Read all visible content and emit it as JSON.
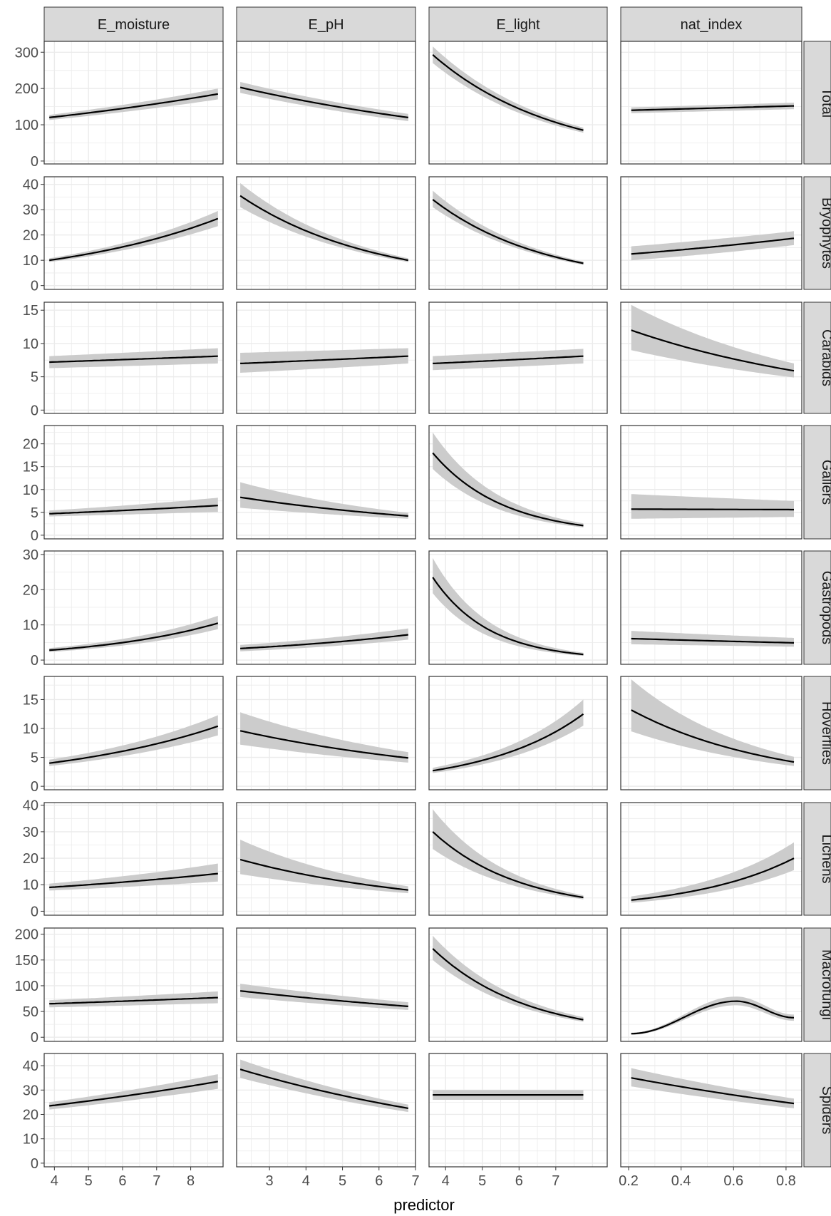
{
  "chart_data": {
    "type": "line",
    "xlabel": "predictor",
    "ylabel": "",
    "columns": [
      {
        "name": "E_moisture",
        "xlim": [
          3.7,
          8.95
        ],
        "ticks": [
          4,
          5,
          6,
          7,
          8
        ]
      },
      {
        "name": "E_pH",
        "xlim": [
          2.1,
          7.0
        ],
        "ticks": [
          3,
          4,
          5,
          6,
          7
        ]
      },
      {
        "name": "E_light",
        "xlim": [
          3.55,
          8.4
        ],
        "ticks": [
          4,
          5,
          6,
          7
        ]
      },
      {
        "name": "nat_index",
        "xlim": [
          0.17,
          0.86
        ],
        "ticks": [
          0.2,
          0.4,
          0.6,
          0.8
        ],
        "tick_labels": [
          "0.2",
          "0.4",
          "0.6",
          "0.8"
        ]
      }
    ],
    "rows": [
      {
        "name": "Total",
        "ylim": [
          -8,
          330
        ],
        "yticks": [
          0,
          100,
          200,
          300
        ],
        "panels": [
          {
            "x": [
              3.85,
              8.8
            ],
            "y": [
              120,
              185
            ],
            "lo": [
              113,
              170
            ],
            "hi": [
              127,
              200
            ]
          },
          {
            "x": [
              2.2,
              6.8
            ],
            "y": [
              203,
              120
            ],
            "lo": [
              188,
              110
            ],
            "hi": [
              218,
              130
            ]
          },
          {
            "x": [
              3.65,
              7.75
            ],
            "y": [
              293,
              85
            ],
            "lo": [
              270,
              78
            ],
            "hi": [
              316,
              92
            ]
          },
          {
            "x": [
              0.21,
              0.83
            ],
            "y": [
              140,
              152
            ],
            "lo": [
              132,
              143
            ],
            "hi": [
              148,
              161
            ]
          }
        ]
      },
      {
        "name": "Bryophytes",
        "ylim": [
          -1.5,
          43
        ],
        "yticks": [
          0,
          10,
          20,
          30,
          40
        ],
        "panels": [
          {
            "x": [
              3.85,
              8.8
            ],
            "y": [
              10,
              26.5
            ],
            "lo": [
              9.3,
              23.5
            ],
            "hi": [
              10.8,
              29.5
            ]
          },
          {
            "x": [
              2.2,
              6.8
            ],
            "y": [
              35.5,
              10
            ],
            "lo": [
              31,
              9.3
            ],
            "hi": [
              40.5,
              10.8
            ]
          },
          {
            "x": [
              3.65,
              7.75
            ],
            "y": [
              34,
              8.8
            ],
            "lo": [
              31,
              8.2
            ],
            "hi": [
              37.5,
              9.5
            ]
          },
          {
            "x": [
              0.21,
              0.83
            ],
            "y": [
              12.5,
              18.7
            ],
            "lo": [
              10,
              16
            ],
            "hi": [
              15.5,
              21.5
            ]
          }
        ]
      },
      {
        "name": "Carabids",
        "ylim": [
          -0.5,
          16.2
        ],
        "yticks": [
          0,
          5,
          10,
          15
        ],
        "panels": [
          {
            "x": [
              3.85,
              8.8
            ],
            "y": [
              7.2,
              8.1
            ],
            "lo": [
              6.3,
              7.0
            ],
            "hi": [
              8.1,
              9.3
            ]
          },
          {
            "x": [
              2.2,
              6.8
            ],
            "y": [
              7.0,
              8.1
            ],
            "lo": [
              5.6,
              7.0
            ],
            "hi": [
              8.6,
              9.3
            ]
          },
          {
            "x": [
              3.65,
              7.75
            ],
            "y": [
              7.0,
              8.1
            ],
            "lo": [
              6.0,
              7.0
            ],
            "hi": [
              8.1,
              9.2
            ]
          },
          {
            "x": [
              0.21,
              0.83
            ],
            "y": [
              12.0,
              5.9
            ],
            "lo": [
              9.0,
              4.9
            ],
            "hi": [
              15.8,
              7.0
            ]
          }
        ]
      },
      {
        "name": "Gallers",
        "ylim": [
          -0.8,
          24
        ],
        "yticks": [
          0,
          5,
          10,
          15,
          20
        ],
        "panels": [
          {
            "x": [
              3.85,
              8.8
            ],
            "y": [
              4.7,
              6.5
            ],
            "lo": [
              4.1,
              5.1
            ],
            "hi": [
              5.4,
              8.2
            ]
          },
          {
            "x": [
              2.2,
              6.8
            ],
            "y": [
              8.3,
              4.2
            ],
            "lo": [
              6.0,
              3.6
            ],
            "hi": [
              11.6,
              4.9
            ]
          },
          {
            "x": [
              3.65,
              7.75
            ],
            "y": [
              18,
              2.1
            ],
            "lo": [
              14.5,
              1.7
            ],
            "hi": [
              22.5,
              2.6
            ]
          },
          {
            "x": [
              0.21,
              0.83
            ],
            "y": [
              5.7,
              5.6
            ],
            "lo": [
              3.6,
              4.0
            ],
            "hi": [
              9.0,
              7.5
            ]
          }
        ]
      },
      {
        "name": "Gastropods",
        "ylim": [
          -1.2,
          31
        ],
        "yticks": [
          0,
          10,
          20,
          30
        ],
        "panels": [
          {
            "x": [
              3.85,
              8.8
            ],
            "y": [
              2.8,
              10.5
            ],
            "lo": [
              2.3,
              8.8
            ],
            "hi": [
              3.4,
              12.6
            ]
          },
          {
            "x": [
              2.2,
              6.8
            ],
            "y": [
              3.3,
              7.2
            ],
            "lo": [
              2.5,
              5.8
            ],
            "hi": [
              4.3,
              9.0
            ]
          },
          {
            "x": [
              3.65,
              7.75
            ],
            "y": [
              23.5,
              1.6
            ],
            "lo": [
              19,
              1.2
            ],
            "hi": [
              29,
              2.1
            ]
          },
          {
            "x": [
              0.21,
              0.83
            ],
            "y": [
              6.1,
              4.9
            ],
            "lo": [
              4.5,
              3.8
            ],
            "hi": [
              8.3,
              6.3
            ]
          }
        ]
      },
      {
        "name": "Hoverflies",
        "ylim": [
          -0.6,
          19
        ],
        "yticks": [
          0,
          5,
          10,
          15
        ],
        "panels": [
          {
            "x": [
              3.85,
              8.8
            ],
            "y": [
              4.0,
              10.4
            ],
            "lo": [
              3.5,
              8.8
            ],
            "hi": [
              4.6,
              12.3
            ]
          },
          {
            "x": [
              2.2,
              6.8
            ],
            "y": [
              9.6,
              4.9
            ],
            "lo": [
              7.2,
              4.1
            ],
            "hi": [
              12.8,
              5.9
            ]
          },
          {
            "x": [
              3.65,
              7.75
            ],
            "y": [
              2.7,
              12.5
            ],
            "lo": [
              2.3,
              10.5
            ],
            "hi": [
              3.2,
              15.0
            ]
          },
          {
            "x": [
              0.21,
              0.83
            ],
            "y": [
              13.2,
              4.2
            ],
            "lo": [
              9.5,
              3.5
            ],
            "hi": [
              18.5,
              5.1
            ]
          }
        ]
      },
      {
        "name": "Lichens",
        "ylim": [
          -1.5,
          41
        ],
        "yticks": [
          0,
          10,
          20,
          30,
          40
        ],
        "panels": [
          {
            "x": [
              3.85,
              8.8
            ],
            "y": [
              9.0,
              14.2
            ],
            "lo": [
              7.8,
              11.2
            ],
            "hi": [
              10.4,
              18.0
            ]
          },
          {
            "x": [
              2.2,
              6.8
            ],
            "y": [
              19.5,
              8.0
            ],
            "lo": [
              14,
              6.8
            ],
            "hi": [
              27,
              9.4
            ]
          },
          {
            "x": [
              3.65,
              7.75
            ],
            "y": [
              30,
              5.2
            ],
            "lo": [
              23.5,
              4.5
            ],
            "hi": [
              38.5,
              6.0
            ]
          },
          {
            "x": [
              0.21,
              0.83
            ],
            "y": [
              4.2,
              20
            ],
            "lo": [
              3.2,
              15.5
            ],
            "hi": [
              5.6,
              26.0
            ]
          }
        ]
      },
      {
        "name": "Macrofungi",
        "ylim": [
          -8,
          212
        ],
        "yticks": [
          0,
          50,
          100,
          150,
          200
        ],
        "panels": [
          {
            "x": [
              3.85,
              8.8
            ],
            "y": [
              65,
              77
            ],
            "lo": [
              58,
              66
            ],
            "hi": [
              72,
              89
            ]
          },
          {
            "x": [
              2.2,
              6.8
            ],
            "y": [
              90,
              60
            ],
            "lo": [
              78,
              53
            ],
            "hi": [
              104,
              68
            ]
          },
          {
            "x": [
              3.65,
              7.75
            ],
            "y": [
              172,
              34
            ],
            "lo": [
              150,
              30
            ],
            "hi": [
              197,
              39
            ]
          },
          {
            "x": [
              0.21,
              0.83
            ],
            "y": [
              7,
              38
            ],
            "lo": [
              5,
              32
            ],
            "hi": [
              9,
              44
            ],
            "hump": {
              "peak_x": 0.61,
              "peak_y": 70,
              "peak_lo": 62,
              "peak_hi": 79
            }
          }
        ]
      },
      {
        "name": "Spiders",
        "ylim": [
          -1.5,
          45
        ],
        "yticks": [
          0,
          10,
          20,
          30,
          40
        ],
        "panels": [
          {
            "x": [
              3.85,
              8.8
            ],
            "y": [
              23.5,
              33.5
            ],
            "lo": [
              22,
              30.5
            ],
            "hi": [
              25,
              36.5
            ]
          },
          {
            "x": [
              2.2,
              6.8
            ],
            "y": [
              38.5,
              22.5
            ],
            "lo": [
              35,
              21
            ],
            "hi": [
              42.5,
              24
            ]
          },
          {
            "x": [
              3.65,
              7.75
            ],
            "y": [
              28,
              28
            ],
            "lo": [
              26,
              26
            ],
            "hi": [
              30,
              30
            ]
          },
          {
            "x": [
              0.21,
              0.83
            ],
            "y": [
              35,
              24.5
            ],
            "lo": [
              31.5,
              22.5
            ],
            "hi": [
              39,
              26.5
            ]
          }
        ]
      }
    ],
    "colors": {
      "line": "#000000",
      "ribbon": "#cccccc",
      "strip": "#d9d9d9",
      "grid": "#ebebeb",
      "frame": "#333333"
    }
  }
}
